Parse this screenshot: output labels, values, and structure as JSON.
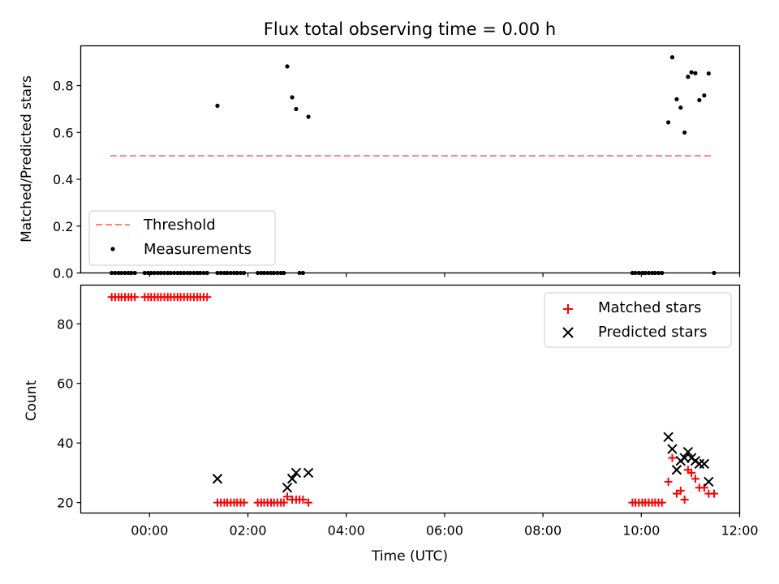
{
  "chart_data": [
    {
      "type": "scatter",
      "title": "Flux total observing time = 0.00 h",
      "xlabel": "",
      "ylabel": "Matched/Predicted stars",
      "ylim": [
        0,
        0.97
      ],
      "yticks": [
        0.0,
        0.2,
        0.4,
        0.6,
        0.8
      ],
      "ytick_labels": [
        "0.0",
        "0.2",
        "0.4",
        "0.6",
        "0.8"
      ],
      "xlim": [
        -1.4,
        12.0
      ],
      "xticks": [
        0,
        2,
        4,
        6,
        8,
        10,
        12
      ],
      "legend_position": "lower-left",
      "series": [
        {
          "name": "Threshold",
          "kind": "dashed-line",
          "color": "#ff7f7f",
          "x": [
            -0.8,
            11.45
          ],
          "y": [
            0.5,
            0.5
          ]
        },
        {
          "name": "Measurements",
          "kind": "points",
          "color": "#000000",
          "x": [
            -0.77,
            -0.7,
            -0.63,
            -0.57,
            -0.5,
            -0.43,
            -0.37,
            -0.3,
            -0.1,
            -0.03,
            0.03,
            0.1,
            0.17,
            0.23,
            0.3,
            0.37,
            0.43,
            0.5,
            0.57,
            0.63,
            0.7,
            0.77,
            0.83,
            0.9,
            0.97,
            1.03,
            1.1,
            1.17,
            1.38,
            1.45,
            1.52,
            1.58,
            1.65,
            1.72,
            1.78,
            1.85,
            1.92,
            2.2,
            2.27,
            2.33,
            2.4,
            2.47,
            2.53,
            2.6,
            2.67,
            2.73,
            3.05,
            3.12,
            9.82,
            9.88,
            9.95,
            10.02,
            10.08,
            10.15,
            10.22,
            10.28,
            10.35,
            10.42,
            11.48,
            1.38,
            2.8,
            2.9,
            2.98,
            3.23,
            10.55,
            10.63,
            10.72,
            10.8,
            10.88,
            10.95,
            11.02,
            11.1,
            11.18,
            11.28,
            11.37
          ],
          "y": [
            0,
            0,
            0,
            0,
            0,
            0,
            0,
            0,
            0,
            0,
            0,
            0,
            0,
            0,
            0,
            0,
            0,
            0,
            0,
            0,
            0,
            0,
            0,
            0,
            0,
            0,
            0,
            0,
            0,
            0,
            0,
            0,
            0,
            0,
            0,
            0,
            0,
            0,
            0,
            0,
            0,
            0,
            0,
            0,
            0,
            0,
            0,
            0,
            0,
            0,
            0,
            0,
            0,
            0,
            0,
            0,
            0,
            0,
            0,
            0.714,
            0.882,
            0.75,
            0.7,
            0.667,
            0.643,
            0.921,
            0.742,
            0.706,
            0.6,
            0.838,
            0.857,
            0.853,
            0.738,
            0.758,
            0.852
          ]
        }
      ]
    },
    {
      "type": "scatter",
      "title": "",
      "xlabel": "Time (UTC)",
      "ylabel": "Count",
      "ylim": [
        16.5,
        93
      ],
      "yticks": [
        20,
        40,
        60,
        80
      ],
      "ytick_labels": [
        "20",
        "40",
        "60",
        "80"
      ],
      "xlim": [
        -1.4,
        12.0
      ],
      "xticks": [
        0,
        2,
        4,
        6,
        8,
        10,
        12
      ],
      "xtick_labels": [
        "00:00",
        "02:00",
        "04:00",
        "06:00",
        "08:00",
        "10:00",
        "12:00"
      ],
      "legend_position": "upper-right",
      "series": [
        {
          "name": "Matched stars",
          "marker": "plus",
          "color": "#ff0000",
          "x": [
            -0.77,
            -0.7,
            -0.63,
            -0.57,
            -0.5,
            -0.43,
            -0.37,
            -0.3,
            -0.1,
            -0.03,
            0.03,
            0.1,
            0.17,
            0.23,
            0.3,
            0.37,
            0.43,
            0.5,
            0.57,
            0.63,
            0.7,
            0.77,
            0.83,
            0.9,
            0.97,
            1.03,
            1.1,
            1.17,
            1.38,
            1.45,
            1.52,
            1.58,
            1.65,
            1.72,
            1.78,
            1.85,
            1.92,
            2.2,
            2.27,
            2.33,
            2.4,
            2.47,
            2.53,
            2.6,
            2.67,
            2.73,
            2.8,
            2.9,
            2.98,
            3.05,
            3.12,
            3.23,
            9.82,
            9.88,
            9.95,
            10.02,
            10.08,
            10.15,
            10.22,
            10.28,
            10.35,
            10.42,
            10.55,
            10.63,
            10.72,
            10.8,
            10.88,
            10.95,
            11.02,
            11.1,
            11.18,
            11.28,
            11.37,
            11.48
          ],
          "y": [
            89,
            89,
            89,
            89,
            89,
            89,
            89,
            89,
            89,
            89,
            89,
            89,
            89,
            89,
            89,
            89,
            89,
            89,
            89,
            89,
            89,
            89,
            89,
            89,
            89,
            89,
            89,
            89,
            20,
            20,
            20,
            20,
            20,
            20,
            20,
            20,
            20,
            20,
            20,
            20,
            20,
            20,
            20,
            20,
            20,
            20,
            22,
            21,
            21,
            21,
            21,
            20,
            20,
            20,
            20,
            20,
            20,
            20,
            20,
            20,
            20,
            20,
            27,
            35,
            23,
            24,
            21,
            31,
            30,
            28,
            25,
            25,
            23,
            23
          ]
        },
        {
          "name": "Predicted stars",
          "marker": "x",
          "color": "#000000",
          "x": [
            1.38,
            2.8,
            2.9,
            2.98,
            3.23,
            10.55,
            10.63,
            10.72,
            10.8,
            10.88,
            10.95,
            11.02,
            11.1,
            11.18,
            11.28,
            11.37
          ],
          "y": [
            28,
            25,
            28,
            30,
            30,
            42,
            38,
            31,
            34,
            35,
            37,
            35,
            34,
            33,
            33,
            27
          ]
        }
      ]
    }
  ]
}
